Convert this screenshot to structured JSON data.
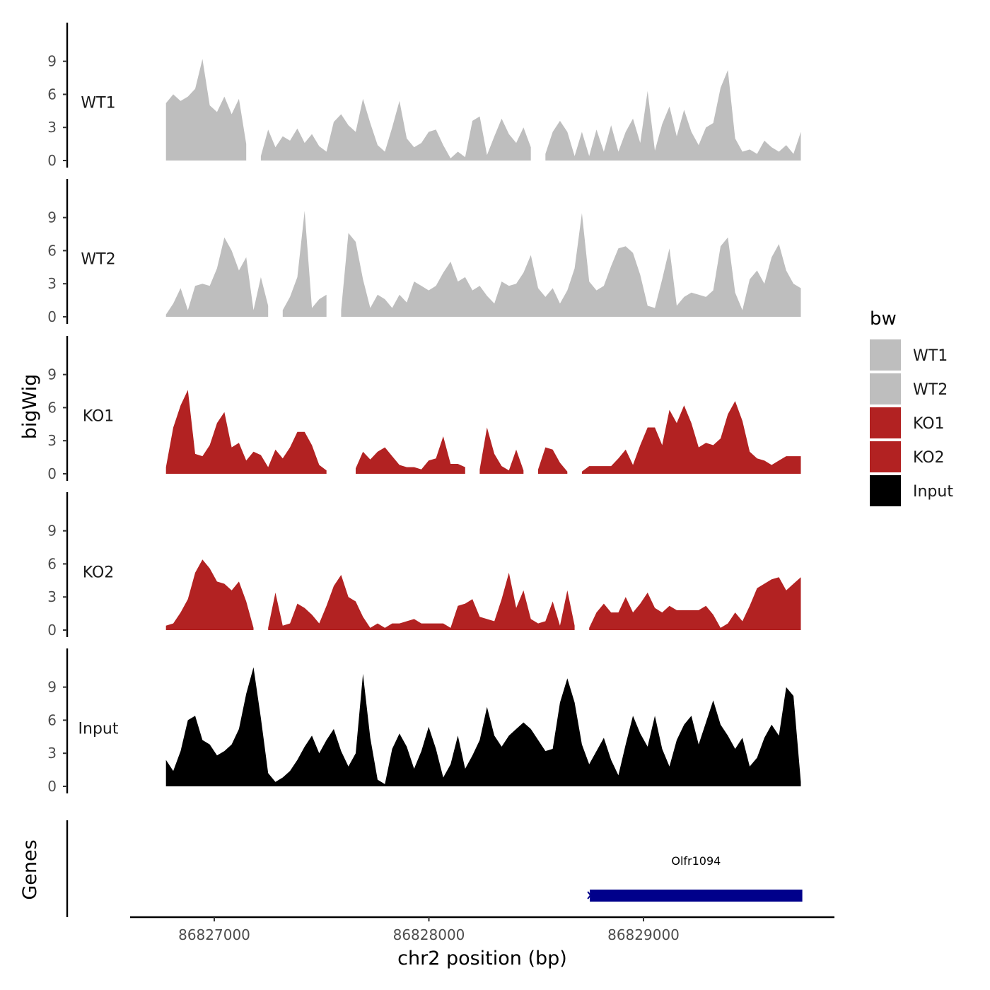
{
  "chart_data": {
    "type": "area",
    "xlabel": "chr2 position (bp)",
    "ylabel": "bigWig",
    "genes_label": "Genes",
    "xlim": [
      86826600,
      86829850
    ],
    "x_ticks": [
      86827000,
      86828000,
      86829000
    ],
    "x_tick_labels": [
      "86827000",
      "86828000",
      "86829000"
    ],
    "ylim": [
      0,
      11.8
    ],
    "y_ticks": [
      0,
      3,
      6,
      9
    ],
    "y_tick_labels": [
      "0",
      "3",
      "6",
      "9"
    ],
    "x": [
      86826775,
      86826809,
      86826843,
      86826877,
      86826911,
      86826945,
      86826979,
      86827013,
      86827047,
      86827081,
      86827115,
      86827149,
      86827183,
      86827217,
      86827251,
      86827285,
      86827319,
      86827353,
      86827387,
      86827421,
      86827455,
      86827489,
      86827523,
      86827557,
      86827591,
      86827625,
      86827659,
      86827693,
      86827727,
      86827761,
      86827795,
      86827829,
      86827863,
      86827897,
      86827931,
      86827965,
      86827999,
      86828033,
      86828067,
      86828101,
      86828135,
      86828169,
      86828203,
      86828237,
      86828271,
      86828305,
      86828339,
      86828373,
      86828407,
      86828441,
      86828475,
      86828509,
      86828543,
      86828577,
      86828611,
      86828645,
      86828679,
      86828713,
      86828747,
      86828781,
      86828815,
      86828849,
      86828883,
      86828917,
      86828951,
      86828985,
      86829019,
      86829053,
      86829087,
      86829121,
      86829155,
      86829189,
      86829223,
      86829257,
      86829291,
      86829325,
      86829359,
      86829393,
      86829427,
      86829461,
      86829495,
      86829529,
      86829563,
      86829597,
      86829631,
      86829665,
      86829699,
      86829733
    ],
    "series": [
      {
        "name": "WT1",
        "color": "#bebebe",
        "values": [
          5.2,
          6.0,
          5.4,
          5.8,
          6.5,
          9.2,
          5.0,
          4.4,
          5.8,
          4.2,
          5.6,
          1.5,
          null,
          0.4,
          2.8,
          1.2,
          2.2,
          1.8,
          2.9,
          1.6,
          2.4,
          1.3,
          0.8,
          3.5,
          4.2,
          3.2,
          2.6,
          5.6,
          3.4,
          1.4,
          0.8,
          3.0,
          5.4,
          2.0,
          1.2,
          1.6,
          2.6,
          2.8,
          1.4,
          0.2,
          0.8,
          0.3,
          3.6,
          4.0,
          0.5,
          2.2,
          3.8,
          2.4,
          1.6,
          3.0,
          1.2,
          null,
          0.6,
          2.6,
          3.6,
          2.6,
          0.4,
          2.6,
          0.4,
          2.8,
          0.8,
          3.2,
          0.8,
          2.6,
          3.8,
          1.6,
          6.3,
          0.9,
          3.3,
          4.9,
          2.2,
          4.6,
          2.6,
          1.4,
          3.0,
          3.4,
          6.6,
          8.2,
          2.0,
          0.8,
          1.0,
          0.6,
          1.8,
          1.2,
          0.8,
          1.4,
          0.6,
          2.6
        ]
      },
      {
        "name": "WT2",
        "color": "#bebebe",
        "values": [
          0.2,
          1.2,
          2.6,
          0.6,
          2.8,
          3.0,
          2.8,
          4.4,
          7.2,
          6.0,
          4.2,
          5.4,
          0.6,
          3.6,
          1.0,
          null,
          0.6,
          1.8,
          3.6,
          9.6,
          0.8,
          1.6,
          2.0,
          null,
          0.6,
          7.6,
          6.8,
          3.4,
          0.8,
          2.0,
          1.6,
          0.8,
          2.0,
          1.3,
          3.2,
          2.8,
          2.4,
          2.8,
          4.0,
          5.0,
          3.2,
          3.6,
          2.4,
          2.8,
          1.9,
          1.2,
          3.2,
          2.8,
          3.0,
          4.0,
          5.6,
          2.6,
          1.8,
          2.6,
          1.2,
          2.4,
          4.4,
          9.4,
          3.2,
          2.4,
          2.8,
          4.6,
          6.2,
          6.4,
          5.8,
          3.8,
          1.0,
          0.8,
          3.4,
          6.2,
          1.0,
          1.8,
          2.2,
          2.0,
          1.8,
          2.4,
          6.4,
          7.2,
          2.2,
          0.6,
          3.4,
          4.2,
          3.0,
          5.4,
          6.6,
          4.2,
          3.0,
          2.6
        ]
      },
      {
        "name": "KO1",
        "color": "#b22222",
        "values": [
          0.6,
          4.2,
          6.2,
          7.6,
          1.8,
          1.6,
          2.6,
          4.6,
          5.6,
          2.4,
          2.8,
          1.2,
          2.0,
          1.7,
          0.6,
          2.2,
          1.4,
          2.4,
          3.8,
          3.8,
          2.6,
          0.8,
          0.3,
          null,
          null,
          null,
          0.5,
          2.0,
          1.3,
          2.0,
          2.4,
          1.6,
          0.8,
          0.6,
          0.6,
          0.4,
          1.2,
          1.4,
          3.4,
          0.9,
          0.9,
          0.6,
          null,
          0.4,
          4.2,
          1.8,
          0.7,
          0.3,
          2.2,
          0.3,
          null,
          0.4,
          2.4,
          2.2,
          1.0,
          0.2,
          null,
          0.2,
          0.7,
          0.7,
          0.7,
          0.7,
          1.4,
          2.2,
          0.8,
          2.6,
          4.2,
          4.2,
          2.6,
          5.8,
          4.6,
          6.2,
          4.6,
          2.4,
          2.8,
          2.6,
          3.2,
          5.4,
          6.6,
          4.8,
          2.0,
          1.4,
          1.2,
          0.8,
          1.2,
          1.6,
          1.6,
          1.6
        ]
      },
      {
        "name": "KO2",
        "color": "#b22222",
        "values": [
          0.4,
          0.6,
          1.6,
          2.8,
          5.2,
          6.4,
          5.6,
          4.4,
          4.2,
          3.6,
          4.4,
          2.6,
          0.2,
          null,
          0.2,
          3.4,
          0.4,
          0.6,
          2.4,
          2.0,
          1.4,
          0.6,
          2.2,
          4.0,
          5.0,
          3.0,
          2.6,
          1.2,
          0.2,
          0.6,
          0.2,
          0.6,
          0.6,
          0.8,
          1.0,
          0.6,
          0.6,
          0.6,
          0.6,
          0.2,
          2.2,
          2.4,
          2.8,
          1.2,
          1.0,
          0.8,
          2.8,
          5.2,
          2.0,
          3.6,
          1.0,
          0.6,
          0.8,
          2.6,
          0.4,
          3.6,
          0.4,
          null,
          0.2,
          1.6,
          2.4,
          1.6,
          1.6,
          3.0,
          1.6,
          2.4,
          3.4,
          2.0,
          1.6,
          2.2,
          1.8,
          1.8,
          1.8,
          1.8,
          2.2,
          1.4,
          0.2,
          0.6,
          1.6,
          0.8,
          2.2,
          3.8,
          4.2,
          4.6,
          4.8,
          3.6,
          4.2,
          4.8
        ]
      },
      {
        "name": "Input",
        "color": "#000000",
        "values": [
          2.4,
          1.4,
          3.2,
          6.0,
          6.4,
          4.2,
          3.8,
          2.8,
          3.2,
          3.8,
          5.2,
          8.4,
          10.8,
          6.2,
          1.2,
          0.4,
          0.8,
          1.4,
          2.4,
          3.6,
          4.6,
          3.0,
          4.2,
          5.2,
          3.2,
          1.8,
          3.0,
          10.2,
          4.4,
          0.6,
          0.2,
          3.4,
          4.8,
          3.6,
          1.6,
          3.2,
          5.4,
          3.4,
          0.8,
          2.0,
          4.6,
          1.6,
          2.8,
          4.2,
          7.2,
          4.6,
          3.6,
          4.6,
          5.2,
          5.8,
          5.2,
          4.2,
          3.2,
          3.4,
          7.6,
          9.8,
          7.6,
          3.8,
          2.0,
          3.2,
          4.4,
          2.4,
          1.0,
          3.8,
          6.4,
          4.8,
          3.6,
          6.4,
          3.4,
          1.8,
          4.2,
          5.6,
          6.4,
          3.8,
          5.8,
          7.8,
          5.6,
          4.6,
          3.4,
          4.4,
          1.8,
          2.6,
          4.4,
          5.6,
          4.6,
          9.0,
          8.2,
          0.4
        ]
      }
    ],
    "legend": {
      "title": "bw",
      "position": "right",
      "entries": [
        {
          "label": "WT1",
          "color": "#bebebe"
        },
        {
          "label": "WT2",
          "color": "#bebebe"
        },
        {
          "label": "KO1",
          "color": "#b22222"
        },
        {
          "label": "KO2",
          "color": "#b22222"
        },
        {
          "label": "Input",
          "color": "#000000"
        }
      ]
    },
    "genes": [
      {
        "name": "Olfr1094",
        "start": 86828750,
        "end": 86829740,
        "strand": "-",
        "color": "#00008b"
      }
    ]
  }
}
